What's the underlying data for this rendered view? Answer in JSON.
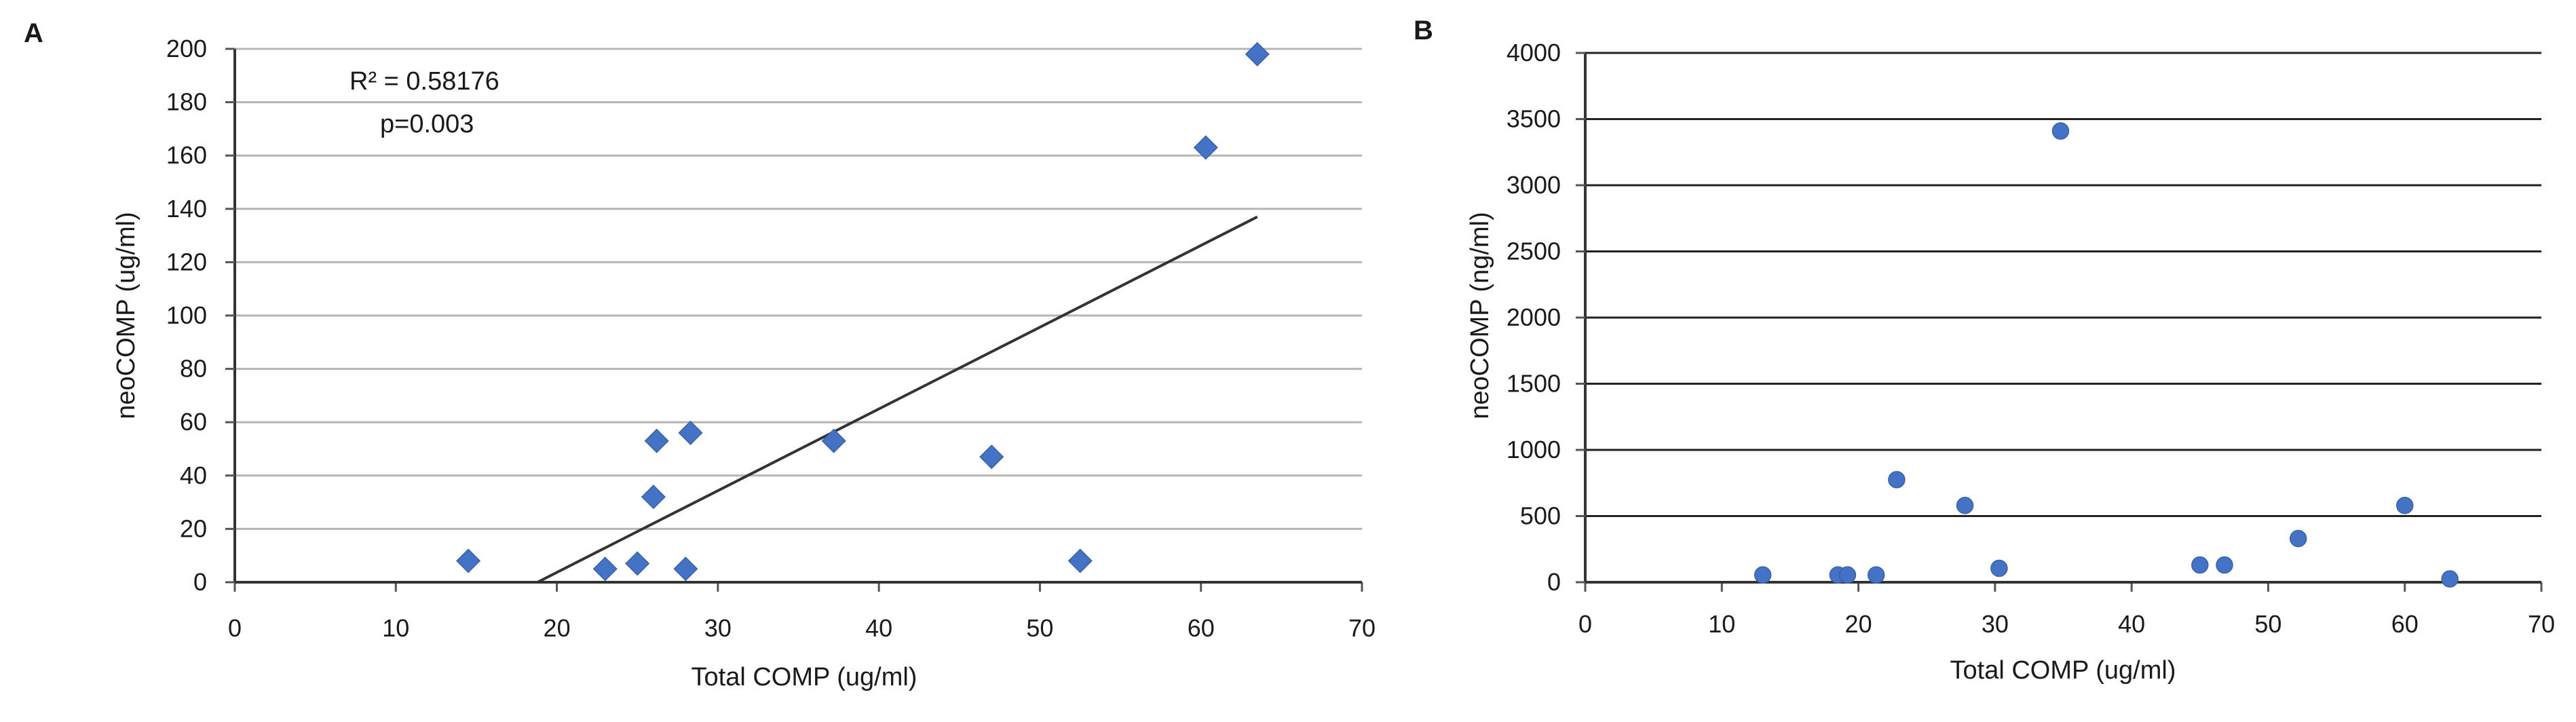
{
  "chart_data": [
    {
      "type": "scatter",
      "panel_label": "A",
      "xlabel": "Total COMP (ug/ml)",
      "ylabel": "neoCOMP (ug/ml)",
      "xlim": [
        0,
        70
      ],
      "ylim": [
        0,
        200
      ],
      "xticks": [
        0,
        10,
        20,
        30,
        40,
        50,
        60,
        70
      ],
      "yticks": [
        0,
        20,
        40,
        60,
        80,
        100,
        120,
        140,
        160,
        180,
        200
      ],
      "grid": "horizontal",
      "marker": "diamond",
      "color": "#4472C4",
      "points": [
        {
          "x": 14.5,
          "y": 8
        },
        {
          "x": 23.0,
          "y": 5
        },
        {
          "x": 25.0,
          "y": 7
        },
        {
          "x": 26.0,
          "y": 32
        },
        {
          "x": 26.2,
          "y": 53
        },
        {
          "x": 28.0,
          "y": 5
        },
        {
          "x": 28.3,
          "y": 56
        },
        {
          "x": 37.2,
          "y": 53
        },
        {
          "x": 47.0,
          "y": 47
        },
        {
          "x": 52.5,
          "y": 8
        },
        {
          "x": 60.3,
          "y": 163
        },
        {
          "x": 63.5,
          "y": 198
        }
      ],
      "trendline": {
        "x": [
          18.8,
          63.5
        ],
        "y": [
          0,
          137
        ],
        "color": "#333333"
      },
      "annotations": [
        "R² = 0.58176",
        "p=0.003"
      ]
    },
    {
      "type": "scatter",
      "panel_label": "B",
      "xlabel": "Total COMP (ug/ml)",
      "ylabel": "neoCOMP (ng/ml)",
      "xlim": [
        0,
        70
      ],
      "ylim": [
        0,
        4000
      ],
      "xticks": [
        0,
        10,
        20,
        30,
        40,
        50,
        60,
        70
      ],
      "yticks": [
        0,
        500,
        1000,
        1500,
        2000,
        2500,
        3000,
        3500,
        4000
      ],
      "grid": "horizontal",
      "marker": "circle",
      "color": "#4472C4",
      "points": [
        {
          "x": 13.0,
          "y": 55
        },
        {
          "x": 18.5,
          "y": 55
        },
        {
          "x": 19.2,
          "y": 55
        },
        {
          "x": 21.3,
          "y": 55
        },
        {
          "x": 22.8,
          "y": 775
        },
        {
          "x": 27.8,
          "y": 580
        },
        {
          "x": 30.3,
          "y": 105
        },
        {
          "x": 34.8,
          "y": 3410
        },
        {
          "x": 45.0,
          "y": 130
        },
        {
          "x": 46.8,
          "y": 130
        },
        {
          "x": 52.2,
          "y": 330
        },
        {
          "x": 60.0,
          "y": 580
        },
        {
          "x": 63.3,
          "y": 25
        }
      ]
    }
  ]
}
